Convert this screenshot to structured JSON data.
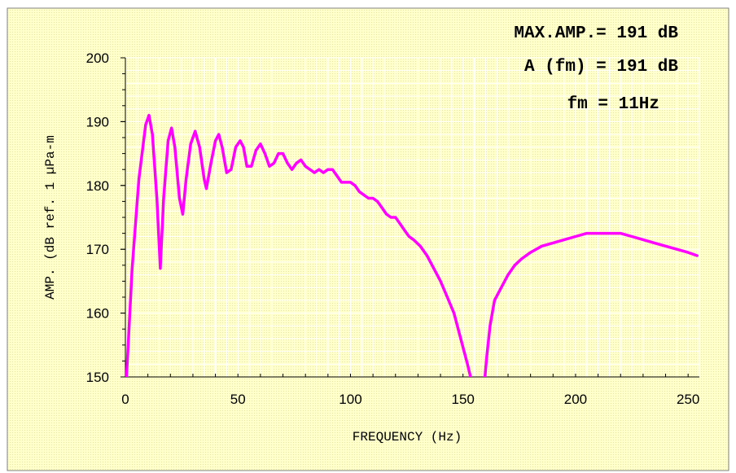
{
  "chart_data": {
    "type": "line",
    "xlabel": "FREQUENCY (Hz)",
    "ylabel": "AMP. (dB ref. 1 µPa-m",
    "xlim": [
      0,
      255
    ],
    "ylim": [
      150,
      200
    ],
    "xticks": [
      0,
      50,
      100,
      150,
      200,
      250
    ],
    "yticks": [
      150,
      160,
      170,
      180,
      190,
      200
    ],
    "xtick_labels": [
      "0",
      "50",
      "100",
      "150",
      "200",
      "250"
    ],
    "ytick_labels": [
      "150",
      "160",
      "170",
      "180",
      "190",
      "200"
    ],
    "annotations": [
      "MAX.AMP.= 191 dB",
      "A (fm) = 191 dB",
      "fm = 11Hz"
    ],
    "grid": true,
    "line_color": "#ff00ff",
    "background_color": "#ffffcc",
    "series": [
      {
        "x": [
          0.5,
          3,
          6,
          9,
          10.5,
          12,
          14,
          15.5,
          17,
          19,
          20.5,
          22,
          24,
          25.5,
          27,
          29,
          31,
          33,
          35,
          36,
          38,
          40,
          41.5,
          43,
          45,
          47,
          49,
          51,
          52.5,
          54,
          56,
          58,
          60,
          62,
          64,
          66,
          68,
          70,
          72,
          74,
          76,
          78,
          80,
          82,
          84,
          86,
          88,
          90,
          92,
          94,
          96,
          98,
          100,
          102,
          104,
          106,
          108,
          110,
          112,
          114,
          116,
          118,
          120,
          122,
          124,
          126,
          128,
          131,
          134,
          137,
          140,
          143,
          146,
          149,
          152,
          154,
          155.5,
          156.5,
          157.5,
          158.5,
          159.5,
          160.5,
          162,
          164,
          167,
          170,
          173,
          176,
          180,
          185,
          190,
          195,
          200,
          205,
          210,
          215,
          220,
          225,
          230,
          235,
          240,
          245,
          250,
          254
        ],
        "values": [
          150,
          167,
          181,
          189.5,
          191,
          188,
          178,
          167,
          178,
          187,
          189,
          186,
          178,
          175.5,
          181,
          186.5,
          188.5,
          186,
          181,
          179.5,
          183.5,
          187,
          188,
          186,
          182,
          182.5,
          186,
          187,
          186,
          183,
          183,
          185.5,
          186.5,
          185,
          183,
          183.5,
          185,
          185,
          183.5,
          182.5,
          183.5,
          184,
          183,
          182.5,
          182,
          182.5,
          182,
          182.5,
          182.5,
          181.5,
          180.5,
          180.5,
          180.5,
          180,
          179,
          178.5,
          178,
          178,
          177.5,
          176.5,
          175.5,
          175,
          175,
          174,
          173,
          172,
          171.5,
          170.5,
          169,
          167,
          165,
          162.5,
          160,
          156,
          152,
          149,
          146,
          144,
          144,
          146,
          149,
          153,
          158,
          162,
          164,
          166,
          167.5,
          168.5,
          169.5,
          170.5,
          171,
          171.5,
          172,
          172.5,
          172.5,
          172.5,
          172.5,
          172,
          171.5,
          171,
          170.5,
          170,
          169.5,
          169
        ]
      }
    ]
  }
}
